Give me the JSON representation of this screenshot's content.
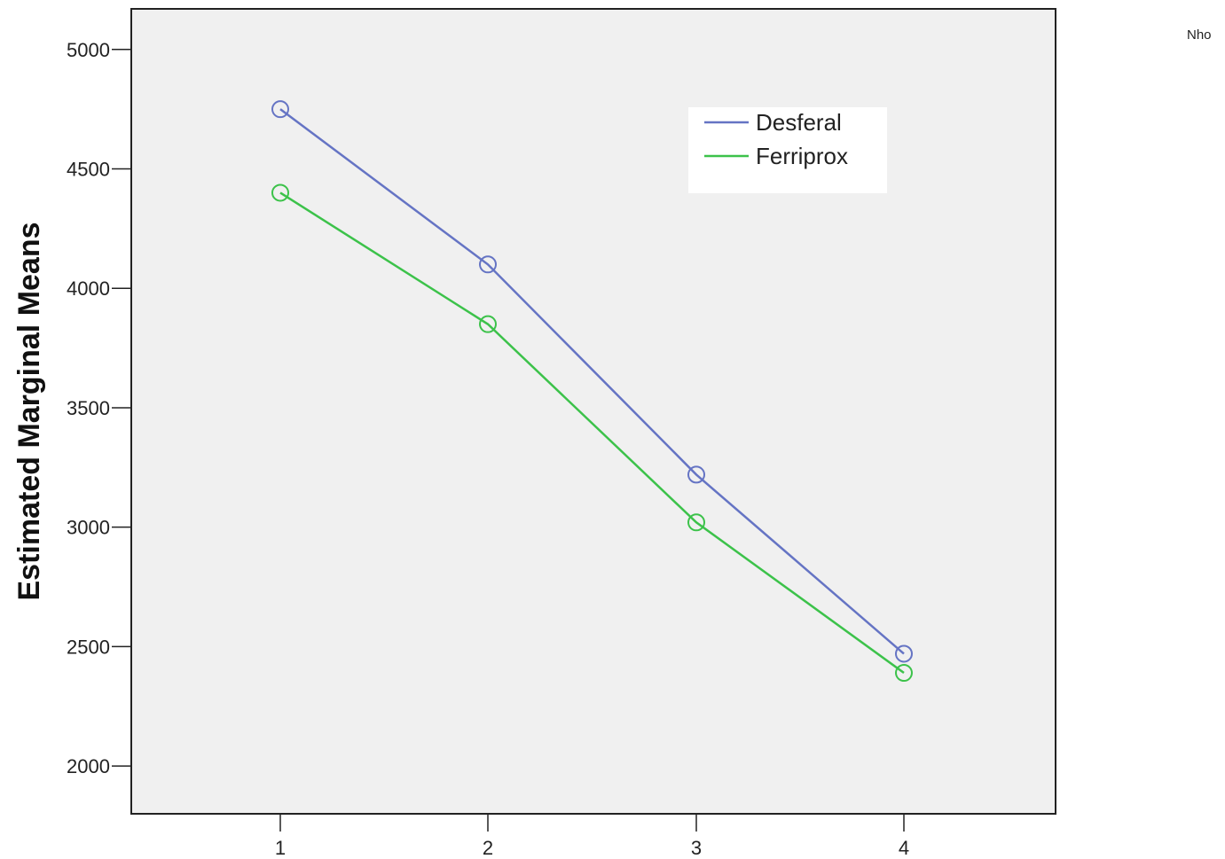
{
  "edge_label": "Nho",
  "chart_data": {
    "type": "line",
    "title": "",
    "xlabel": "",
    "ylabel": "Estimated Marginal Means",
    "x": [
      "1",
      "2",
      "3",
      "4"
    ],
    "ylim": [
      1800,
      5170
    ],
    "yticks": [
      "2000",
      "2500",
      "3000",
      "3500",
      "4000",
      "4500",
      "5000"
    ],
    "grid": false,
    "legend_position": "top-right",
    "series": [
      {
        "name": "Desferal",
        "color": "#6574c4",
        "values": [
          4750,
          4100,
          3220,
          2470
        ]
      },
      {
        "name": "Ferriprox",
        "color": "#3cc24a",
        "values": [
          4400,
          3850,
          3020,
          2390
        ]
      }
    ]
  }
}
